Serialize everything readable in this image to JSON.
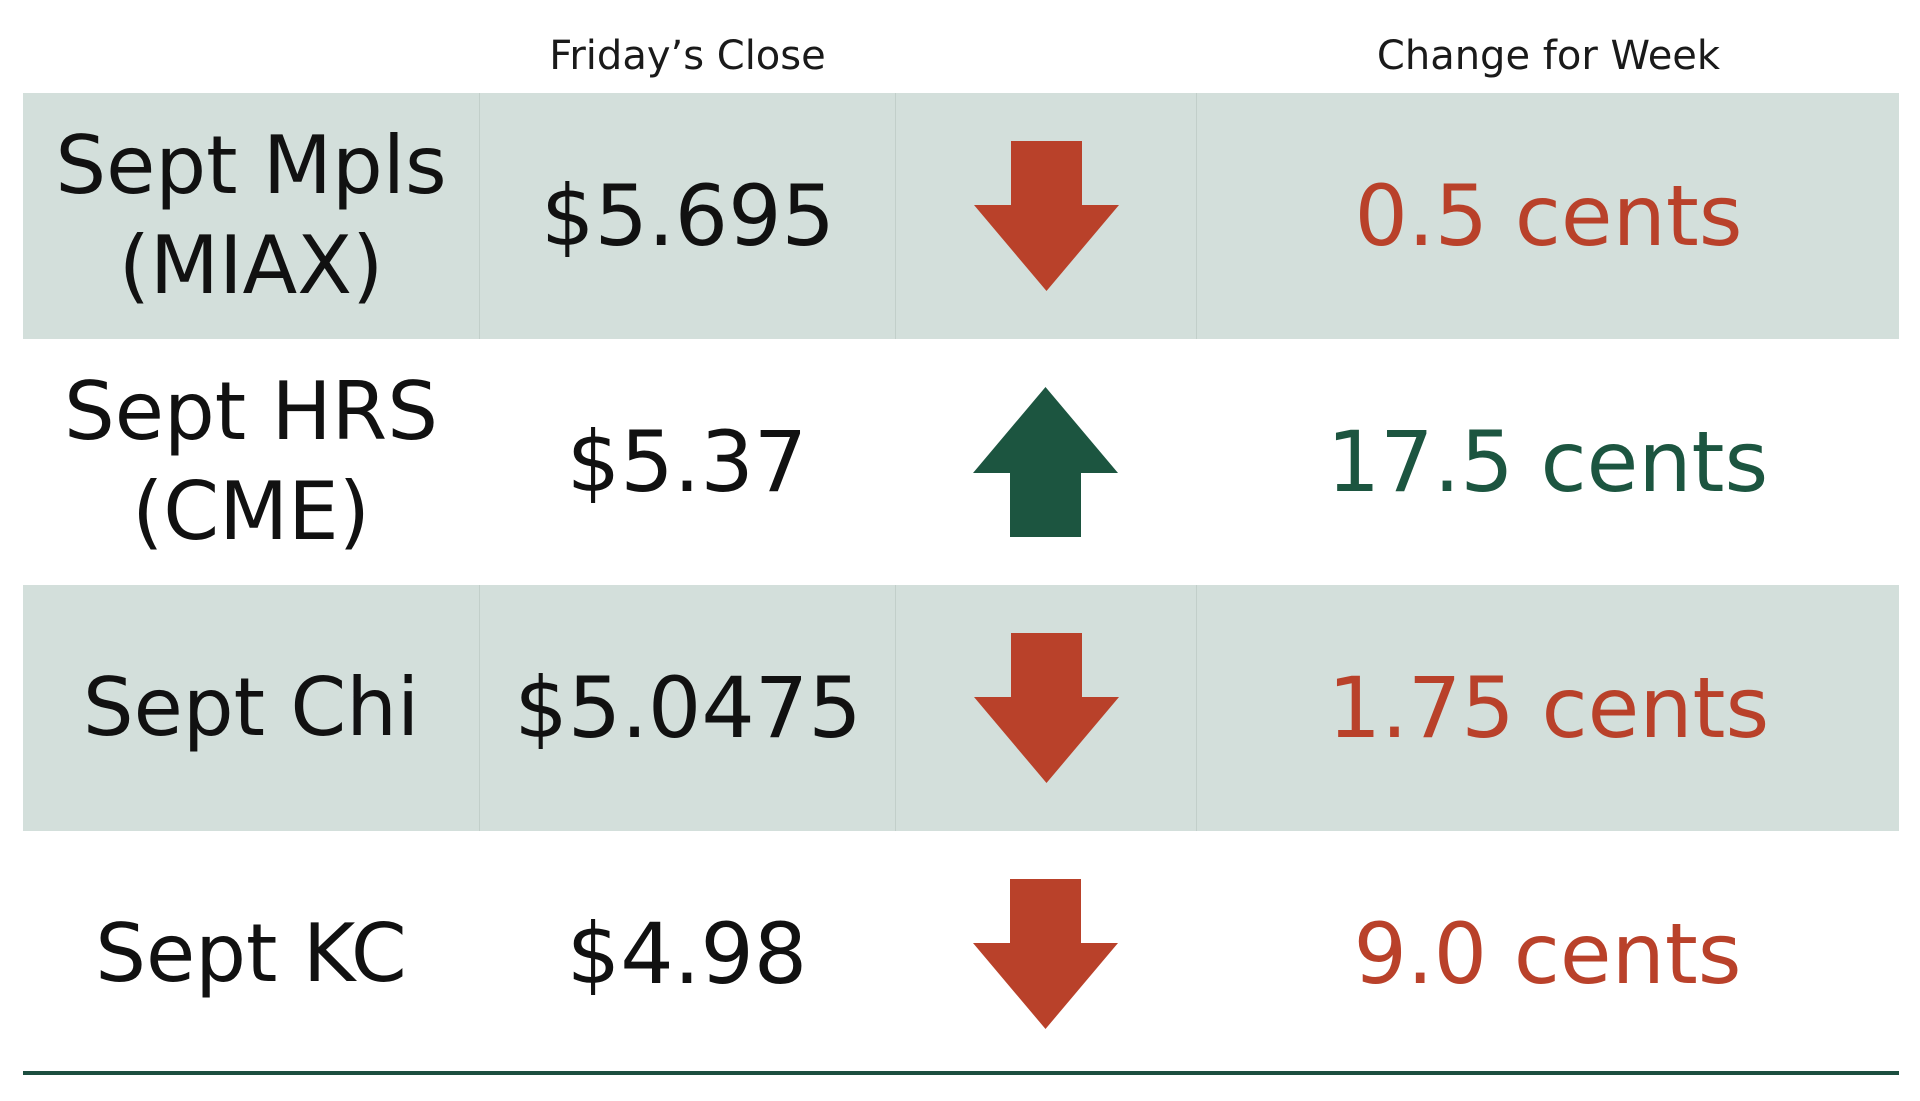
{
  "header": {
    "close_label": "Friday’s Close",
    "change_label": "Change for Week"
  },
  "colors": {
    "down": "#b9412a",
    "up": "#1c5540",
    "row_shade": "#d3dfdb",
    "rule": "#1c4e3f"
  },
  "rows": [
    {
      "contract": "Sept Mpls\n(MIAX)",
      "close": "$5.695",
      "direction": "down",
      "arrow_icon": "arrow-down-icon",
      "change": "0.5 cents"
    },
    {
      "contract": "Sept HRS\n(CME)",
      "close": "$5.37",
      "direction": "up",
      "arrow_icon": "arrow-up-icon",
      "change": "17.5 cents"
    },
    {
      "contract": "Sept Chi",
      "close": "$5.0475",
      "direction": "down",
      "arrow_icon": "arrow-down-icon",
      "change": "1.75 cents"
    },
    {
      "contract": "Sept KC",
      "close": "$4.98",
      "direction": "down",
      "arrow_icon": "arrow-down-icon",
      "change": "9.0 cents"
    }
  ]
}
